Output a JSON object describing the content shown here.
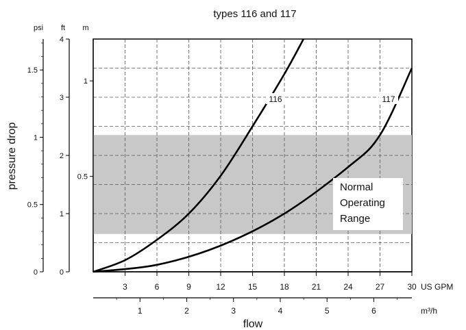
{
  "chart_data": {
    "type": "line",
    "title": "types 116 and 117",
    "xlabel": "flow",
    "ylabel": "pressure drop",
    "x_unit": "US GPM",
    "x2_unit": "m³/h",
    "x_ticks": [
      3,
      6,
      9,
      12,
      15,
      18,
      21,
      24,
      27,
      30
    ],
    "x2_ticks": [
      1,
      2,
      3,
      4,
      5,
      6
    ],
    "xlim": [
      0,
      30
    ],
    "y_axes": [
      {
        "unit": "psi",
        "ticks": [
          "0",
          "0.5",
          "1",
          "1.5"
        ],
        "max": 1.73
      },
      {
        "unit": "ft",
        "ticks": [
          "0",
          "1",
          "2",
          "3",
          "4"
        ],
        "max": 4
      },
      {
        "unit": "m",
        "ticks": [
          "0.5",
          "1"
        ],
        "max": 1.22
      }
    ],
    "grid": true,
    "shaded_band": {
      "label": [
        "Normal",
        "Operating",
        "Range"
      ],
      "y_ft": [
        0.65,
        2.35
      ]
    },
    "series": [
      {
        "name": "116",
        "x_gpm": [
          0,
          3,
          6,
          9,
          12,
          15,
          18,
          19.8
        ],
        "y_ft": [
          0,
          0.2,
          0.55,
          1.0,
          1.65,
          2.5,
          3.4,
          4.0
        ]
      },
      {
        "name": "117",
        "x_gpm": [
          0,
          6,
          12,
          18,
          24,
          27,
          30
        ],
        "y_ft": [
          0,
          0.12,
          0.45,
          1.0,
          1.8,
          2.35,
          3.5
        ]
      }
    ]
  }
}
